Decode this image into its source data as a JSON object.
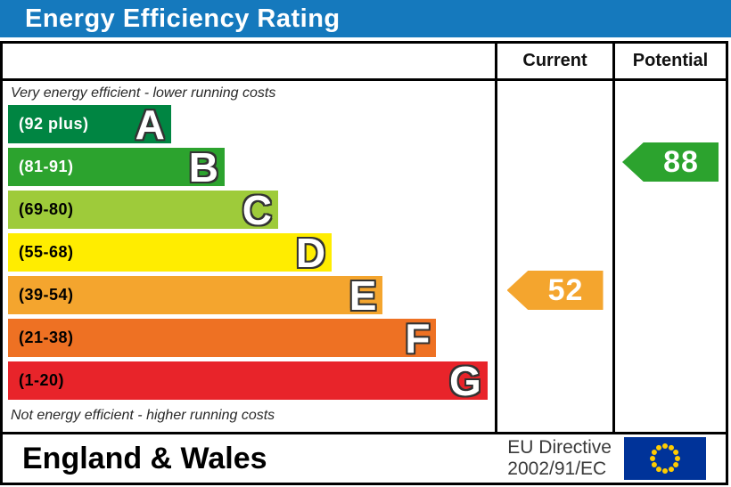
{
  "title": "Energy Efficiency Rating",
  "columns": {
    "current": "Current",
    "potential": "Potential"
  },
  "captions": {
    "top": "Very energy efficient - lower running costs",
    "bottom": "Not energy efficient - higher running costs"
  },
  "chart_data": {
    "type": "bar",
    "title": "Energy Efficiency Rating",
    "bands": [
      {
        "letter": "A",
        "range": "(92 plus)",
        "color": "#008542",
        "label_color": "#ffffff",
        "width_pct": 33.5
      },
      {
        "letter": "B",
        "range": "(81-91)",
        "color": "#2ca32e",
        "label_color": "#ffffff",
        "width_pct": 44.5
      },
      {
        "letter": "C",
        "range": "(69-80)",
        "color": "#9ecb3a",
        "label_color": "#000000",
        "width_pct": 55.5
      },
      {
        "letter": "D",
        "range": "(55-68)",
        "color": "#ffed00",
        "label_color": "#000000",
        "width_pct": 66.5
      },
      {
        "letter": "E",
        "range": "(39-54)",
        "color": "#f4a52e",
        "label_color": "#000000",
        "width_pct": 77.0
      },
      {
        "letter": "F",
        "range": "(21-38)",
        "color": "#ee7123",
        "label_color": "#000000",
        "width_pct": 88.0
      },
      {
        "letter": "G",
        "range": "(1-20)",
        "color": "#e8242a",
        "label_color": "#000000",
        "width_pct": 98.5
      }
    ],
    "current": {
      "value": 52,
      "band": "E",
      "color": "#f4a52e"
    },
    "potential": {
      "value": 88,
      "band": "B",
      "color": "#2ca32e"
    }
  },
  "footer": {
    "region": "England & Wales",
    "directive_line1": "EU Directive",
    "directive_line2": "2002/91/EC",
    "eu_flag": {
      "background": "#003399",
      "stars": "#ffcc00"
    }
  },
  "theme": {
    "title_bar": "#1579bd",
    "border": "#000000"
  }
}
